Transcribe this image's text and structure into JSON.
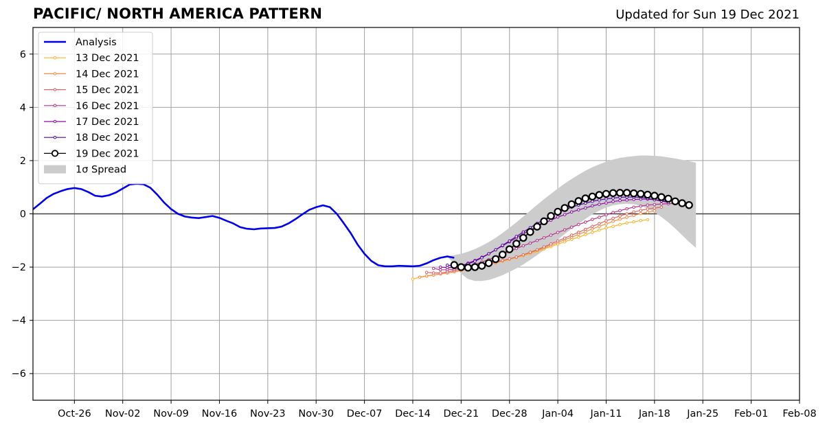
{
  "chart_data": {
    "type": "line",
    "title": "PACIFIC/ NORTH AMERICA PATTERN",
    "subtitle": "Updated for Sun 19 Dec 2021",
    "xlabel": "",
    "ylabel": "",
    "x_axis": {
      "type": "date",
      "min": "2021-10-20",
      "max": "2022-02-08"
    },
    "xticks": [
      {
        "date": "2021-10-26",
        "label": "Oct-26"
      },
      {
        "date": "2021-11-02",
        "label": "Nov-02"
      },
      {
        "date": "2021-11-09",
        "label": "Nov-09"
      },
      {
        "date": "2021-11-16",
        "label": "Nov-16"
      },
      {
        "date": "2021-11-23",
        "label": "Nov-23"
      },
      {
        "date": "2021-11-30",
        "label": "Nov-30"
      },
      {
        "date": "2021-12-07",
        "label": "Dec-07"
      },
      {
        "date": "2021-12-14",
        "label": "Dec-14"
      },
      {
        "date": "2021-12-21",
        "label": "Dec-21"
      },
      {
        "date": "2021-12-28",
        "label": "Dec-28"
      },
      {
        "date": "2022-01-04",
        "label": "Jan-04"
      },
      {
        "date": "2022-01-11",
        "label": "Jan-11"
      },
      {
        "date": "2022-01-18",
        "label": "Jan-18"
      },
      {
        "date": "2022-01-25",
        "label": "Jan-25"
      },
      {
        "date": "2022-02-01",
        "label": "Feb-01"
      },
      {
        "date": "2022-02-08",
        "label": "Feb-08"
      }
    ],
    "ylim": [
      -7,
      7
    ],
    "yticks": [
      -6,
      -4,
      -2,
      0,
      2,
      4,
      6
    ],
    "ytick_labels": [
      "−6",
      "−4",
      "−2",
      "0",
      "2",
      "4",
      "6"
    ],
    "grid": true,
    "legend_position": "top-left",
    "analysis": {
      "name": "Analysis",
      "color": "#0000ee",
      "start": "2021-10-20",
      "values": [
        0.17,
        0.38,
        0.6,
        0.75,
        0.85,
        0.93,
        0.97,
        0.93,
        0.82,
        0.68,
        0.65,
        0.7,
        0.8,
        0.95,
        1.1,
        1.13,
        1.11,
        0.98,
        0.72,
        0.42,
        0.18,
        0.0,
        -0.1,
        -0.14,
        -0.16,
        -0.12,
        -0.08,
        -0.15,
        -0.26,
        -0.36,
        -0.5,
        -0.56,
        -0.58,
        -0.55,
        -0.54,
        -0.53,
        -0.48,
        -0.36,
        -0.2,
        -0.02,
        0.15,
        0.25,
        0.32,
        0.25,
        0.0,
        -0.35,
        -0.72,
        -1.15,
        -1.5,
        -1.77,
        -1.93,
        -1.97,
        -1.97,
        -1.95,
        -1.96,
        -1.97,
        -1.95,
        -1.86,
        -1.74,
        -1.65,
        -1.6,
        -1.65
      ]
    },
    "forecasts": [
      {
        "name": "13 Dec 2021",
        "color": "#fbb32a",
        "start": "2021-12-14",
        "values": [
          -2.45,
          -2.38,
          -2.34,
          -2.3,
          -2.26,
          -2.22,
          -2.18,
          -2.13,
          -2.08,
          -2.02,
          -1.96,
          -1.9,
          -1.84,
          -1.78,
          -1.71,
          -1.64,
          -1.57,
          -1.49,
          -1.41,
          -1.32,
          -1.23,
          -1.14,
          -1.05,
          -0.96,
          -0.88,
          -0.78,
          -0.7,
          -0.61,
          -0.53,
          -0.47,
          -0.4,
          -0.34,
          -0.3,
          -0.25,
          -0.22
        ]
      },
      {
        "name": "14 Dec 2021",
        "color": "#f68d45",
        "start": "2021-12-15",
        "values": [
          -2.38,
          -2.33,
          -2.29,
          -2.26,
          -2.22,
          -2.17,
          -2.12,
          -2.07,
          -2.01,
          -1.95,
          -1.89,
          -1.83,
          -1.76,
          -1.69,
          -1.62,
          -1.54,
          -1.46,
          -1.37,
          -1.28,
          -1.18,
          -1.08,
          -0.97,
          -0.88,
          -0.77,
          -0.67,
          -0.57,
          -0.47,
          -0.38,
          -0.28,
          -0.2,
          -0.13,
          -0.06,
          0.01,
          0.06,
          0.11
        ]
      },
      {
        "name": "15 Dec 2021",
        "color": "#e16462",
        "start": "2021-12-16",
        "values": [
          -2.2,
          -2.22,
          -2.22,
          -2.18,
          -2.13,
          -2.07,
          -2.01,
          -1.95,
          -1.9,
          -1.85,
          -1.8,
          -1.75,
          -1.69,
          -1.62,
          -1.54,
          -1.44,
          -1.35,
          -1.24,
          -1.13,
          -1.02,
          -0.91,
          -0.8,
          -0.69,
          -0.58,
          -0.47,
          -0.37,
          -0.26,
          -0.17,
          -0.08,
          0.0,
          0.07,
          0.13,
          0.18,
          0.22,
          0.25
        ]
      },
      {
        "name": "16 Dec 2021",
        "color": "#b83289",
        "start": "2021-12-17",
        "values": [
          -2.05,
          -2.1,
          -2.1,
          -2.08,
          -2.04,
          -1.98,
          -1.9,
          -1.81,
          -1.72,
          -1.62,
          -1.52,
          -1.42,
          -1.3,
          -1.2,
          -1.1,
          -1.0,
          -0.9,
          -0.8,
          -0.7,
          -0.6,
          -0.5,
          -0.4,
          -0.31,
          -0.21,
          -0.13,
          -0.04,
          0.05,
          0.12,
          0.19,
          0.25,
          0.29,
          0.33,
          0.35,
          0.37,
          0.38,
          0.39
        ]
      },
      {
        "name": "17 Dec 2021",
        "color": "#8b0aa5",
        "start": "2021-12-18",
        "values": [
          -2.0,
          -2.02,
          -2.02,
          -1.95,
          -1.85,
          -1.75,
          -1.63,
          -1.5,
          -1.35,
          -1.2,
          -1.05,
          -0.9,
          -0.75,
          -0.6,
          -0.48,
          -0.35,
          -0.24,
          -0.12,
          -0.03,
          0.07,
          0.15,
          0.22,
          0.3,
          0.36,
          0.41,
          0.46,
          0.5,
          0.52,
          0.54,
          0.55,
          0.55,
          0.53,
          0.5,
          0.47
        ]
      },
      {
        "name": "18 Dec 2021",
        "color": "#5302a3",
        "start": "2021-12-19",
        "values": [
          -1.93,
          -1.95,
          -1.95,
          -1.88,
          -1.78,
          -1.65,
          -1.5,
          -1.35,
          -1.18,
          -1.02,
          -0.85,
          -0.68,
          -0.52,
          -0.36,
          -0.22,
          -0.08,
          0.05,
          0.15,
          0.25,
          0.33,
          0.4,
          0.47,
          0.52,
          0.56,
          0.59,
          0.62,
          0.63,
          0.63,
          0.62,
          0.58,
          0.53,
          0.48,
          0.43
        ]
      },
      {
        "name": "19 Dec 2021",
        "color": "#000000",
        "start": "2021-12-20",
        "values": [
          -1.92,
          -2.0,
          -2.02,
          -2.0,
          -1.95,
          -1.85,
          -1.7,
          -1.53,
          -1.33,
          -1.12,
          -0.9,
          -0.68,
          -0.48,
          -0.28,
          -0.08,
          0.08,
          0.22,
          0.36,
          0.48,
          0.58,
          0.65,
          0.71,
          0.75,
          0.78,
          0.79,
          0.79,
          0.77,
          0.75,
          0.72,
          0.68,
          0.63,
          0.57,
          0.47,
          0.4,
          0.33
        ]
      }
    ],
    "spread": {
      "name": "1σ Spread",
      "color": "#cccccc",
      "start": "2021-12-19",
      "lower": [
        -1.6,
        -1.9,
        -2.25,
        -2.45,
        -2.52,
        -2.52,
        -2.48,
        -2.4,
        -2.3,
        -2.18,
        -2.05,
        -1.9,
        -1.73,
        -1.55,
        -1.36,
        -1.16,
        -0.96,
        -0.76,
        -0.56,
        -0.37,
        -0.19,
        -0.02,
        0.12,
        0.24,
        0.32,
        0.36,
        0.38,
        0.36,
        0.3,
        0.2,
        0.06,
        -0.12,
        -0.32,
        -0.55,
        -0.8,
        -1.05,
        -1.28
      ],
      "upper": [
        -1.6,
        -1.55,
        -1.5,
        -1.42,
        -1.32,
        -1.2,
        -1.06,
        -0.9,
        -0.72,
        -0.52,
        -0.32,
        -0.1,
        0.12,
        0.34,
        0.55,
        0.75,
        0.95,
        1.14,
        1.31,
        1.47,
        1.62,
        1.75,
        1.86,
        1.96,
        2.04,
        2.1,
        2.14,
        2.17,
        2.19,
        2.19,
        2.18,
        2.16,
        2.12,
        2.08,
        2.03,
        1.98,
        1.92
      ]
    }
  }
}
